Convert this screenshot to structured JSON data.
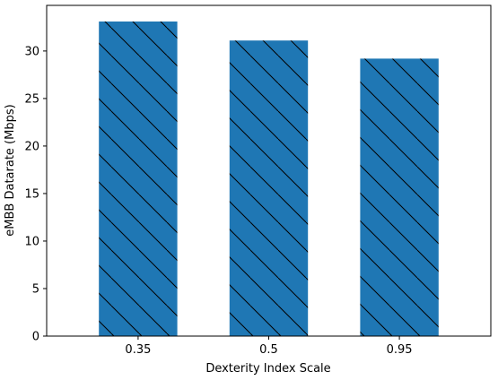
{
  "chart_data": {
    "type": "bar",
    "categories": [
      "0.35",
      "0.5",
      "0.95"
    ],
    "values": [
      33.1,
      31.1,
      29.2
    ],
    "title": "",
    "xlabel": "Dexterity Index Scale",
    "ylabel": "eMBB Datarate (Mbps)",
    "ylim": [
      0,
      34.8
    ],
    "yticks": [
      0,
      5,
      10,
      15,
      20,
      25,
      30
    ],
    "bar_color": "#1f77b4",
    "hatch": "backslash",
    "grid": false,
    "legend": "none"
  }
}
